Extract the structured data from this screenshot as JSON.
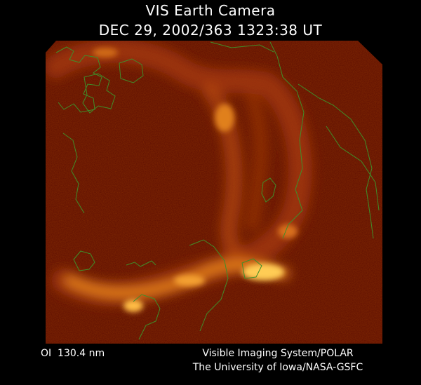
{
  "header": {
    "title": "VIS Earth Camera",
    "subtitle": "DEC 29, 2002/363 1323:38 UT"
  },
  "footer": {
    "wavelength": "OI  130.4 nm",
    "credit_lines": [
      "Visible Imaging System/POLAR",
      "The University of Iowa/NASA-GSFC"
    ]
  }
}
